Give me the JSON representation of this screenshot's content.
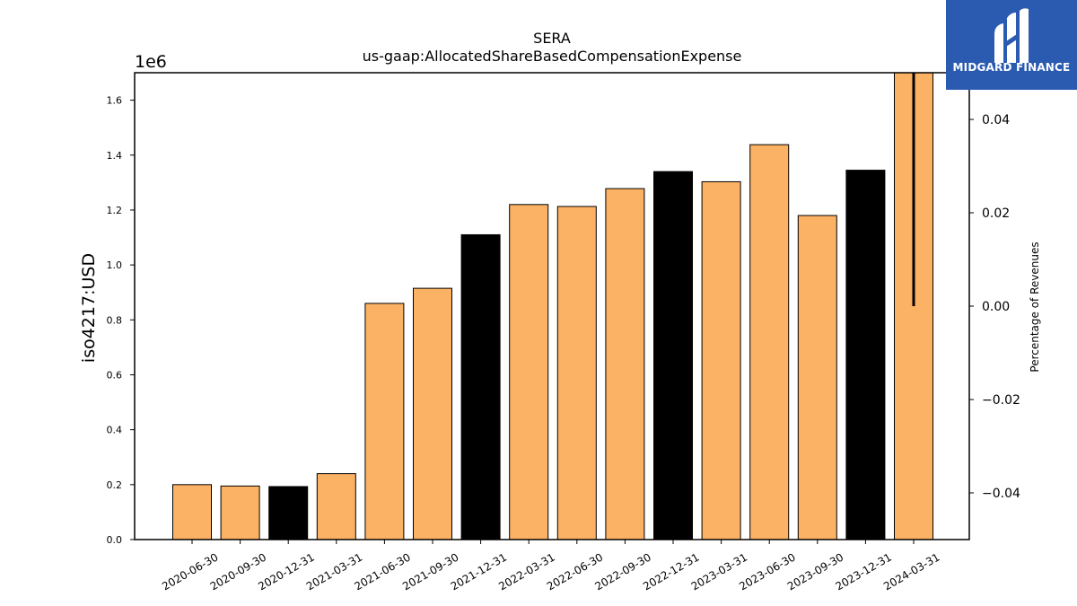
{
  "chart_data": {
    "type": "bar",
    "title": "SERA",
    "subtitle": "us-gaap:AllocatedShareBasedCompensationExpense",
    "ylabel": "iso4217:USD",
    "y_offset_label": "1e6",
    "y2label": "Percentage of Revenues",
    "categories": [
      "2020-06-30",
      "2020-09-30",
      "2020-12-31",
      "2021-03-31",
      "2021-06-30",
      "2021-09-30",
      "2021-12-31",
      "2022-03-31",
      "2022-06-30",
      "2022-09-30",
      "2022-12-31",
      "2023-03-31",
      "2023-06-30",
      "2023-09-30",
      "2023-12-31",
      "2024-03-31"
    ],
    "values": [
      200000,
      195000,
      193000,
      240000,
      860000,
      915000,
      1110000,
      1220000,
      1213000,
      1278000,
      1340000,
      1303000,
      1438000,
      1180000,
      1345000,
      1700000
    ],
    "quarter_end_q4": [
      false,
      false,
      true,
      false,
      false,
      false,
      true,
      false,
      false,
      false,
      true,
      false,
      false,
      false,
      true,
      false
    ],
    "ylim": [
      0,
      1700000
    ],
    "yticks": [
      "0.0",
      "0.2",
      "0.4",
      "0.6",
      "0.8",
      "1.0",
      "1.2",
      "1.4",
      "1.6"
    ],
    "y2lim": [
      -0.05,
      0.05
    ],
    "y2ticks": [
      "−0.04",
      "−0.02",
      "0.00",
      "0.02",
      "0.04"
    ],
    "percent_series": {
      "category": "2024-03-31",
      "from": 0.0,
      "to": 0.05
    },
    "colors": {
      "bar": "#fbb264",
      "bar_q4": "#000000",
      "edge": "#000000",
      "line": "#000000"
    }
  },
  "logo": {
    "text": "MIDGARD FINANCE",
    "brand_color": "#2b5bb1"
  }
}
